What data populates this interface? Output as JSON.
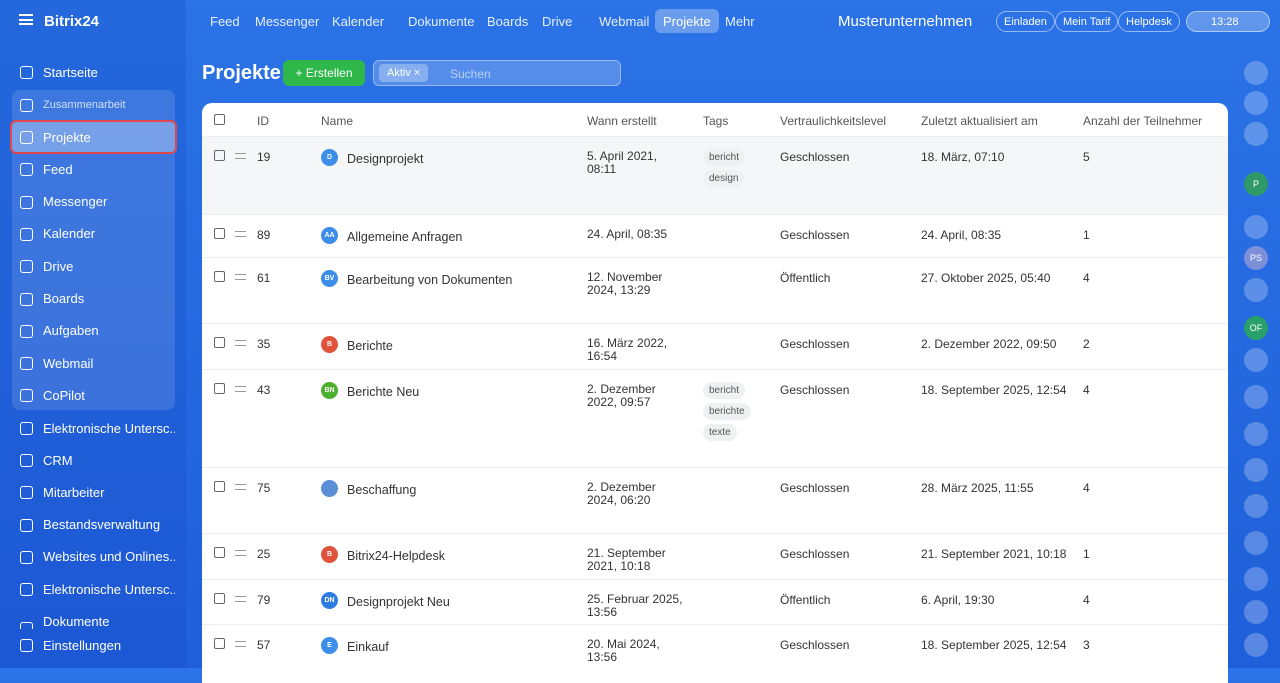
{
  "sidebar": {
    "logo": "Bitrix24",
    "home": "Startseite",
    "group": "Zusammenarbeit",
    "group_items": [
      "Projekte",
      "Feed",
      "Messenger",
      "Kalender",
      "Drive",
      "Boards",
      "Aufgaben",
      "Webmail",
      "CoPilot"
    ],
    "items": [
      "Elektronische Untersc...",
      "CRM",
      "Mitarbeiter",
      "Bestandsverwaltung",
      "Websites und Onlines...",
      "Elektronische Untersc...",
      "Dokumente"
    ],
    "settings": "Einstellungen"
  },
  "topnav": {
    "items": [
      "Feed",
      "Messenger",
      "Kalender",
      "Dokumente",
      "Boards",
      "Drive",
      "Webmail",
      "Projekte",
      "Mehr"
    ],
    "company": "Musterunternehmen",
    "buttons": [
      "Einladen",
      "Mein Tarif",
      "Helpdesk"
    ],
    "time": "13:28"
  },
  "header": {
    "title": "Projekte",
    "create": "Erstellen",
    "filter": "Aktiv",
    "search": "Suchen"
  },
  "table": {
    "columns": [
      "ID",
      "Name",
      "Wann erstellt",
      "Tags",
      "Vertraulichkeitslevel",
      "Zuletzt aktualisiert am",
      "Anzahl der Teilnehmer"
    ],
    "rows": [
      {
        "id": "19",
        "icon": "D",
        "icon_color": "#3d8ee8",
        "name": "Designprojekt",
        "created": "5. April 2021, 08:11",
        "tags": [
          "bericht",
          "design"
        ],
        "level": "Geschlossen",
        "updated": "18. März, 07:10",
        "members": "5"
      },
      {
        "id": "89",
        "icon": "AA",
        "icon_color": "#3d8ee8",
        "name": "Allgemeine Anfragen",
        "created": "24. April, 08:35",
        "tags": [],
        "level": "Geschlossen",
        "updated": "24. April, 08:35",
        "members": "1"
      },
      {
        "id": "61",
        "icon": "BV",
        "icon_color": "#3d8ee8",
        "name": "Bearbeitung von Dokumenten",
        "created": "12. November 2024, 13:29",
        "tags": [],
        "level": "Öffentlich",
        "updated": "27. Oktober 2025, 05:40",
        "members": "4"
      },
      {
        "id": "35",
        "icon": "B",
        "icon_color": "#e0533b",
        "name": "Berichte",
        "created": "16. März 2022, 16:54",
        "tags": [],
        "level": "Geschlossen",
        "updated": "2. Dezember 2022, 09:50",
        "members": "2"
      },
      {
        "id": "43",
        "icon": "BN",
        "icon_color": "#4caf2f",
        "name": "Berichte Neu",
        "created": "2. Dezember 2022, 09:57",
        "tags": [
          "bericht",
          "berichte",
          "texte"
        ],
        "level": "Geschlossen",
        "updated": "18. September 2025, 12:54",
        "members": "4"
      },
      {
        "id": "75",
        "icon_color": "#5b8fd6",
        "name": "Beschaffung",
        "created": "2. Dezember 2024, 06:20",
        "tags": [],
        "level": "Geschlossen",
        "updated": "28. März 2025, 11:55",
        "members": "4"
      },
      {
        "id": "25",
        "icon": "B",
        "icon_color": "#e0533b",
        "name": "Bitrix24-Helpdesk",
        "created": "21. September 2021, 10:18",
        "tags": [],
        "level": "Geschlossen",
        "updated": "21. September 2021, 10:18",
        "members": "1"
      },
      {
        "id": "79",
        "icon": "DN",
        "icon_color": "#2f7de1",
        "name": "Designprojekt Neu",
        "created": "25. Februar 2025, 13:56",
        "tags": [],
        "level": "Öffentlich",
        "updated": "6. April, 19:30",
        "members": "4"
      },
      {
        "id": "57",
        "icon": "E",
        "icon_color": "#3d8ee8",
        "name": "Einkauf",
        "created": "20. Mai 2024, 13:56",
        "tags": [],
        "level": "Geschlossen",
        "updated": "18. September 2025, 12:54",
        "members": "3"
      }
    ]
  },
  "right_panel": {
    "avatars": [
      "P",
      "PS",
      "OF"
    ]
  }
}
